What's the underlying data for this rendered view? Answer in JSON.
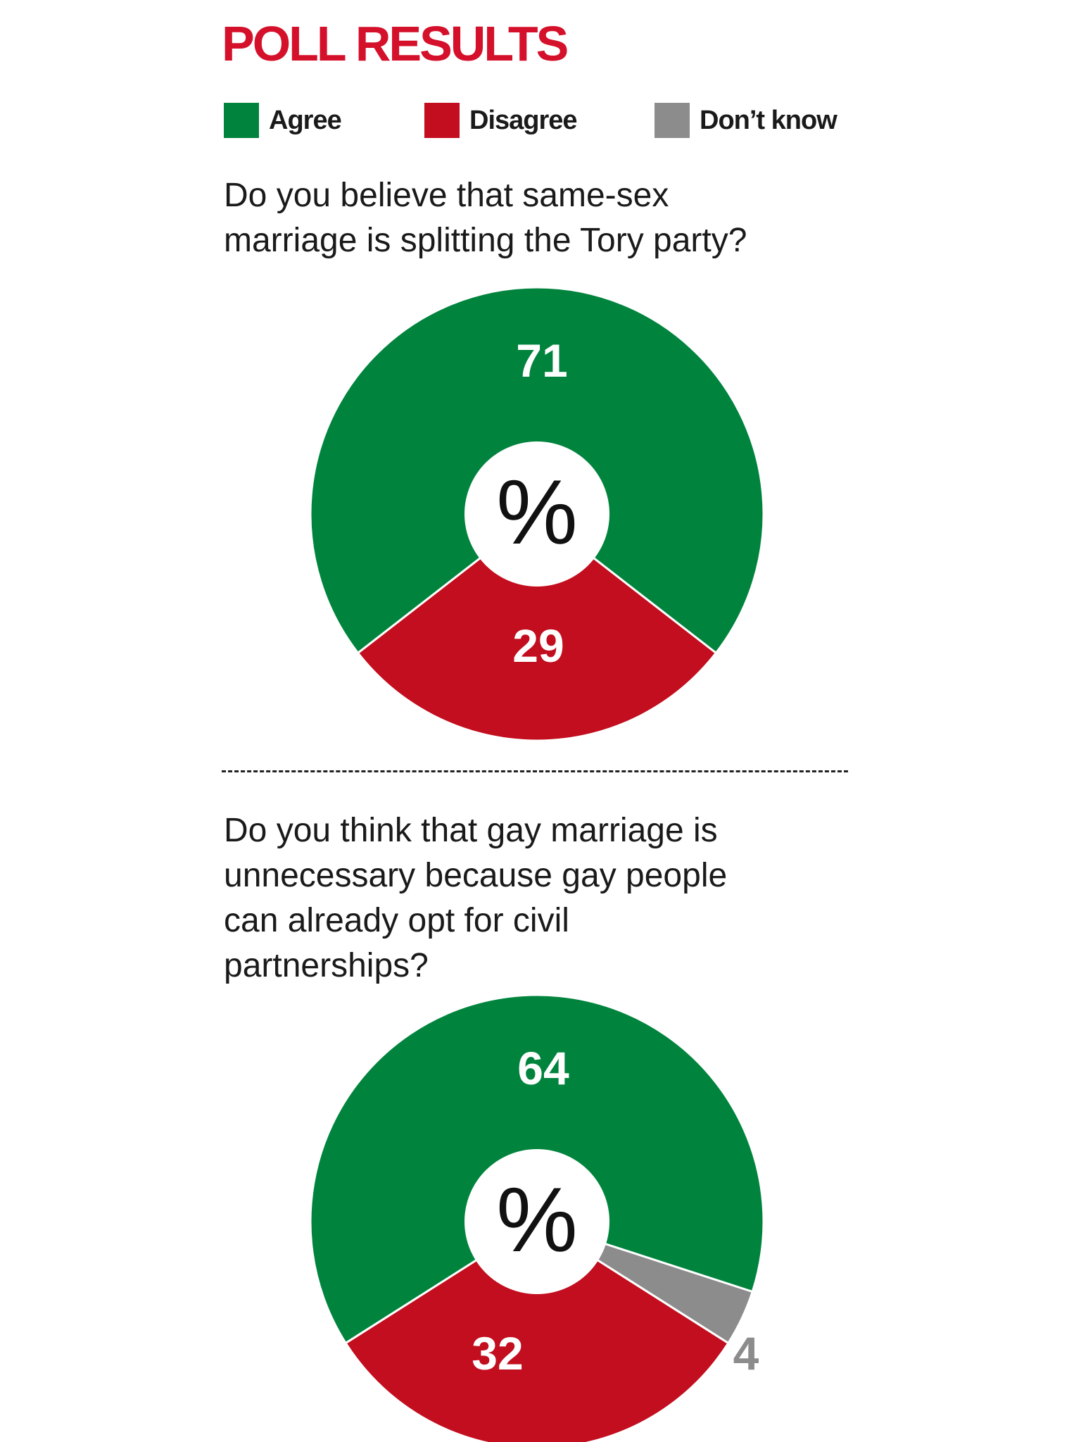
{
  "header": {
    "title": "POLL RESULTS"
  },
  "legend": [
    {
      "label": "Agree",
      "color": "#00843d"
    },
    {
      "label": "Disagree",
      "color": "#c20e1e"
    },
    {
      "label": "Don’t know",
      "color": "#8c8c8c"
    }
  ],
  "questions": [
    {
      "lines": [
        "Do you believe that same-sex",
        "marriage is splitting the Tory party?"
      ]
    },
    {
      "lines": [
        "Do you think that gay marriage is",
        "unnecessary because gay people",
        "can already opt for civil",
        "partnerships?"
      ]
    }
  ],
  "center_label": "%",
  "chart_data": [
    {
      "type": "pie",
      "title": "",
      "slices": [
        {
          "label": "Agree",
          "value": 71,
          "color": "#00843d"
        },
        {
          "label": "Disagree",
          "value": 29,
          "color": "#c20e1e"
        }
      ]
    },
    {
      "type": "pie",
      "title": "",
      "slices": [
        {
          "label": "Agree",
          "value": 64,
          "color": "#00843d"
        },
        {
          "label": "Disagree",
          "value": 32,
          "color": "#c20e1e"
        },
        {
          "label": "Don’t know",
          "value": 4,
          "color": "#8c8c8c"
        }
      ]
    }
  ]
}
